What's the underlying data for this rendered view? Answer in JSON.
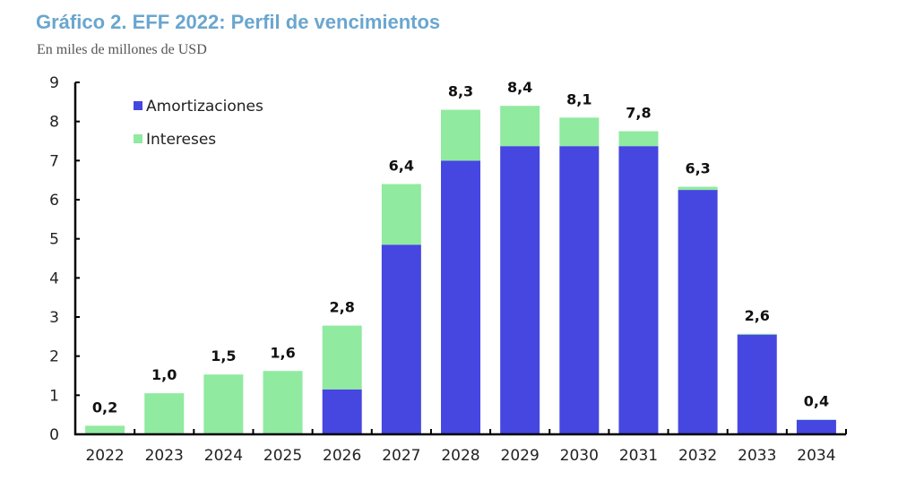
{
  "title": "Gráfico 2. EFF 2022: Perfil de vencimientos",
  "subtitle": "En miles de millones de USD",
  "colors": {
    "amortizaciones": "#4646e0",
    "intereses": "#90eaa0",
    "title": "#6aa6cf"
  },
  "chart_data": {
    "type": "bar",
    "stacked": true,
    "title": "Gráfico 2. EFF 2022: Perfil de vencimientos",
    "subtitle": "En miles de millones de USD",
    "xlabel": "",
    "ylabel": "",
    "ylim": [
      0,
      9
    ],
    "yticks": [
      "0",
      "1",
      "2",
      "3",
      "4",
      "5",
      "6",
      "7",
      "8",
      "9"
    ],
    "grid": false,
    "legend": {
      "position": "top-left",
      "entries": [
        "Amortizaciones",
        "Intereses"
      ]
    },
    "categories": [
      "2022",
      "2023",
      "2024",
      "2025",
      "2026",
      "2027",
      "2028",
      "2029",
      "2030",
      "2031",
      "2032",
      "2033",
      "2034"
    ],
    "series": [
      {
        "name": "Amortizaciones",
        "values": [
          0,
          0,
          0,
          0,
          1.15,
          4.85,
          7.0,
          7.37,
          7.37,
          7.37,
          6.25,
          2.55,
          0.37
        ]
      },
      {
        "name": "Intereses",
        "values": [
          0.22,
          1.05,
          1.53,
          1.62,
          1.63,
          1.55,
          1.3,
          1.03,
          0.73,
          0.38,
          0.08,
          0.02,
          0.01
        ]
      }
    ],
    "totals_labels": [
      "0,2",
      "1,0",
      "1,5",
      "1,6",
      "2,8",
      "6,4",
      "8,3",
      "8,4",
      "8,1",
      "7,8",
      "6,3",
      "2,6",
      "0,4"
    ]
  }
}
